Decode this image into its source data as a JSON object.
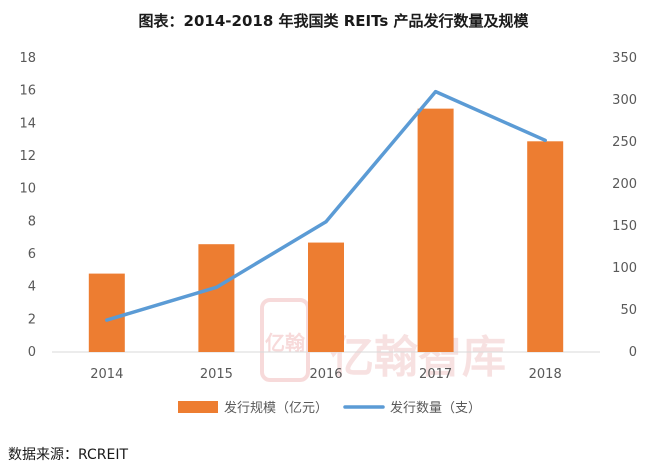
{
  "chart_data": {
    "type": "bar",
    "title": "图表：2014-2018 年我国类 REITs 产品发行数量及规模",
    "categories": [
      "2014",
      "2015",
      "2016",
      "2017",
      "2018"
    ],
    "series": [
      {
        "name": "发行规模（亿元）",
        "type": "bar",
        "axis": "left",
        "color": "#ed7d31",
        "values": [
          4.8,
          6.6,
          6.7,
          14.9,
          12.9
        ]
      },
      {
        "name": "发行数量（支）",
        "type": "line",
        "axis": "right",
        "color": "#5b9bd5",
        "values": [
          38,
          77,
          155,
          310,
          252
        ]
      }
    ],
    "ylim_left": [
      0,
      18
    ],
    "yticks_left": [
      0,
      2,
      4,
      6,
      8,
      10,
      12,
      14,
      16,
      18
    ],
    "ylim_right": [
      0,
      350
    ],
    "yticks_right": [
      0,
      50,
      100,
      150,
      200,
      250,
      300,
      350
    ],
    "grid": false,
    "legend_position": "bottom"
  },
  "watermark": {
    "text": "亿翰智库",
    "logo_text": "亿翰"
  },
  "source": "数据来源：RCREIT"
}
